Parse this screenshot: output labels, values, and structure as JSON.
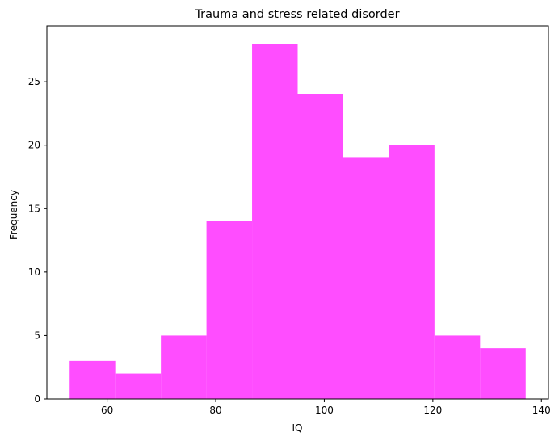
{
  "chart_data": {
    "type": "bar",
    "subtype": "histogram",
    "title": "Trauma and stress related disorder",
    "xlabel": "IQ",
    "ylabel": "Frequency",
    "bin_edges": [
      53.1,
      61.5,
      69.9,
      78.3,
      86.7,
      95.1,
      103.5,
      111.9,
      120.3,
      128.7,
      137.1
    ],
    "values": [
      3,
      2,
      5,
      14,
      28,
      24,
      19,
      20,
      5,
      4
    ],
    "xlim": [
      48.9,
      141.3
    ],
    "ylim": [
      0,
      29.4
    ],
    "xticks": [
      60,
      80,
      100,
      120,
      140
    ],
    "yticks": [
      0,
      5,
      10,
      15,
      20,
      25
    ],
    "bar_color": "#ff4dff",
    "grid": false,
    "legend": "none"
  }
}
